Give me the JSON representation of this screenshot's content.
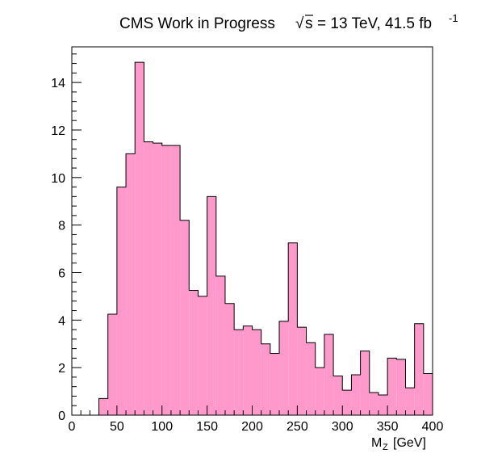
{
  "chart_data": {
    "type": "bar",
    "title_main": "CMS Work in Progress",
    "title_sqrt_symbol": "√",
    "title_sqrt_var": "s",
    "title_rest": "= 13 TeV, 41.5 fb",
    "title_sup": "-1",
    "xlabel_main": "M",
    "xlabel_sub": "Z",
    "xlabel_unit": "[GeV]",
    "ylabel": "",
    "xlim": [
      0,
      400
    ],
    "ylim": [
      0,
      15.5
    ],
    "xticks": [
      "0",
      "50",
      "100",
      "150",
      "200",
      "250",
      "300",
      "350",
      "400"
    ],
    "yticks": [
      "0",
      "2",
      "4",
      "6",
      "8",
      "10",
      "12",
      "14"
    ],
    "fill_color": "#ff99cc",
    "line_color": "#000000",
    "bin_width": 10,
    "bin_edges_start": 30,
    "values": [
      0.7,
      4.25,
      9.6,
      11.0,
      14.85,
      11.5,
      11.45,
      11.35,
      11.35,
      8.2,
      5.25,
      5.0,
      9.2,
      5.85,
      4.7,
      3.6,
      3.75,
      3.6,
      3.0,
      2.6,
      3.95,
      7.25,
      3.7,
      3.05,
      2.0,
      3.4,
      1.65,
      1.05,
      1.7,
      2.7,
      0.95,
      0.85,
      2.4,
      2.35,
      1.15,
      3.85,
      1.75
    ]
  }
}
